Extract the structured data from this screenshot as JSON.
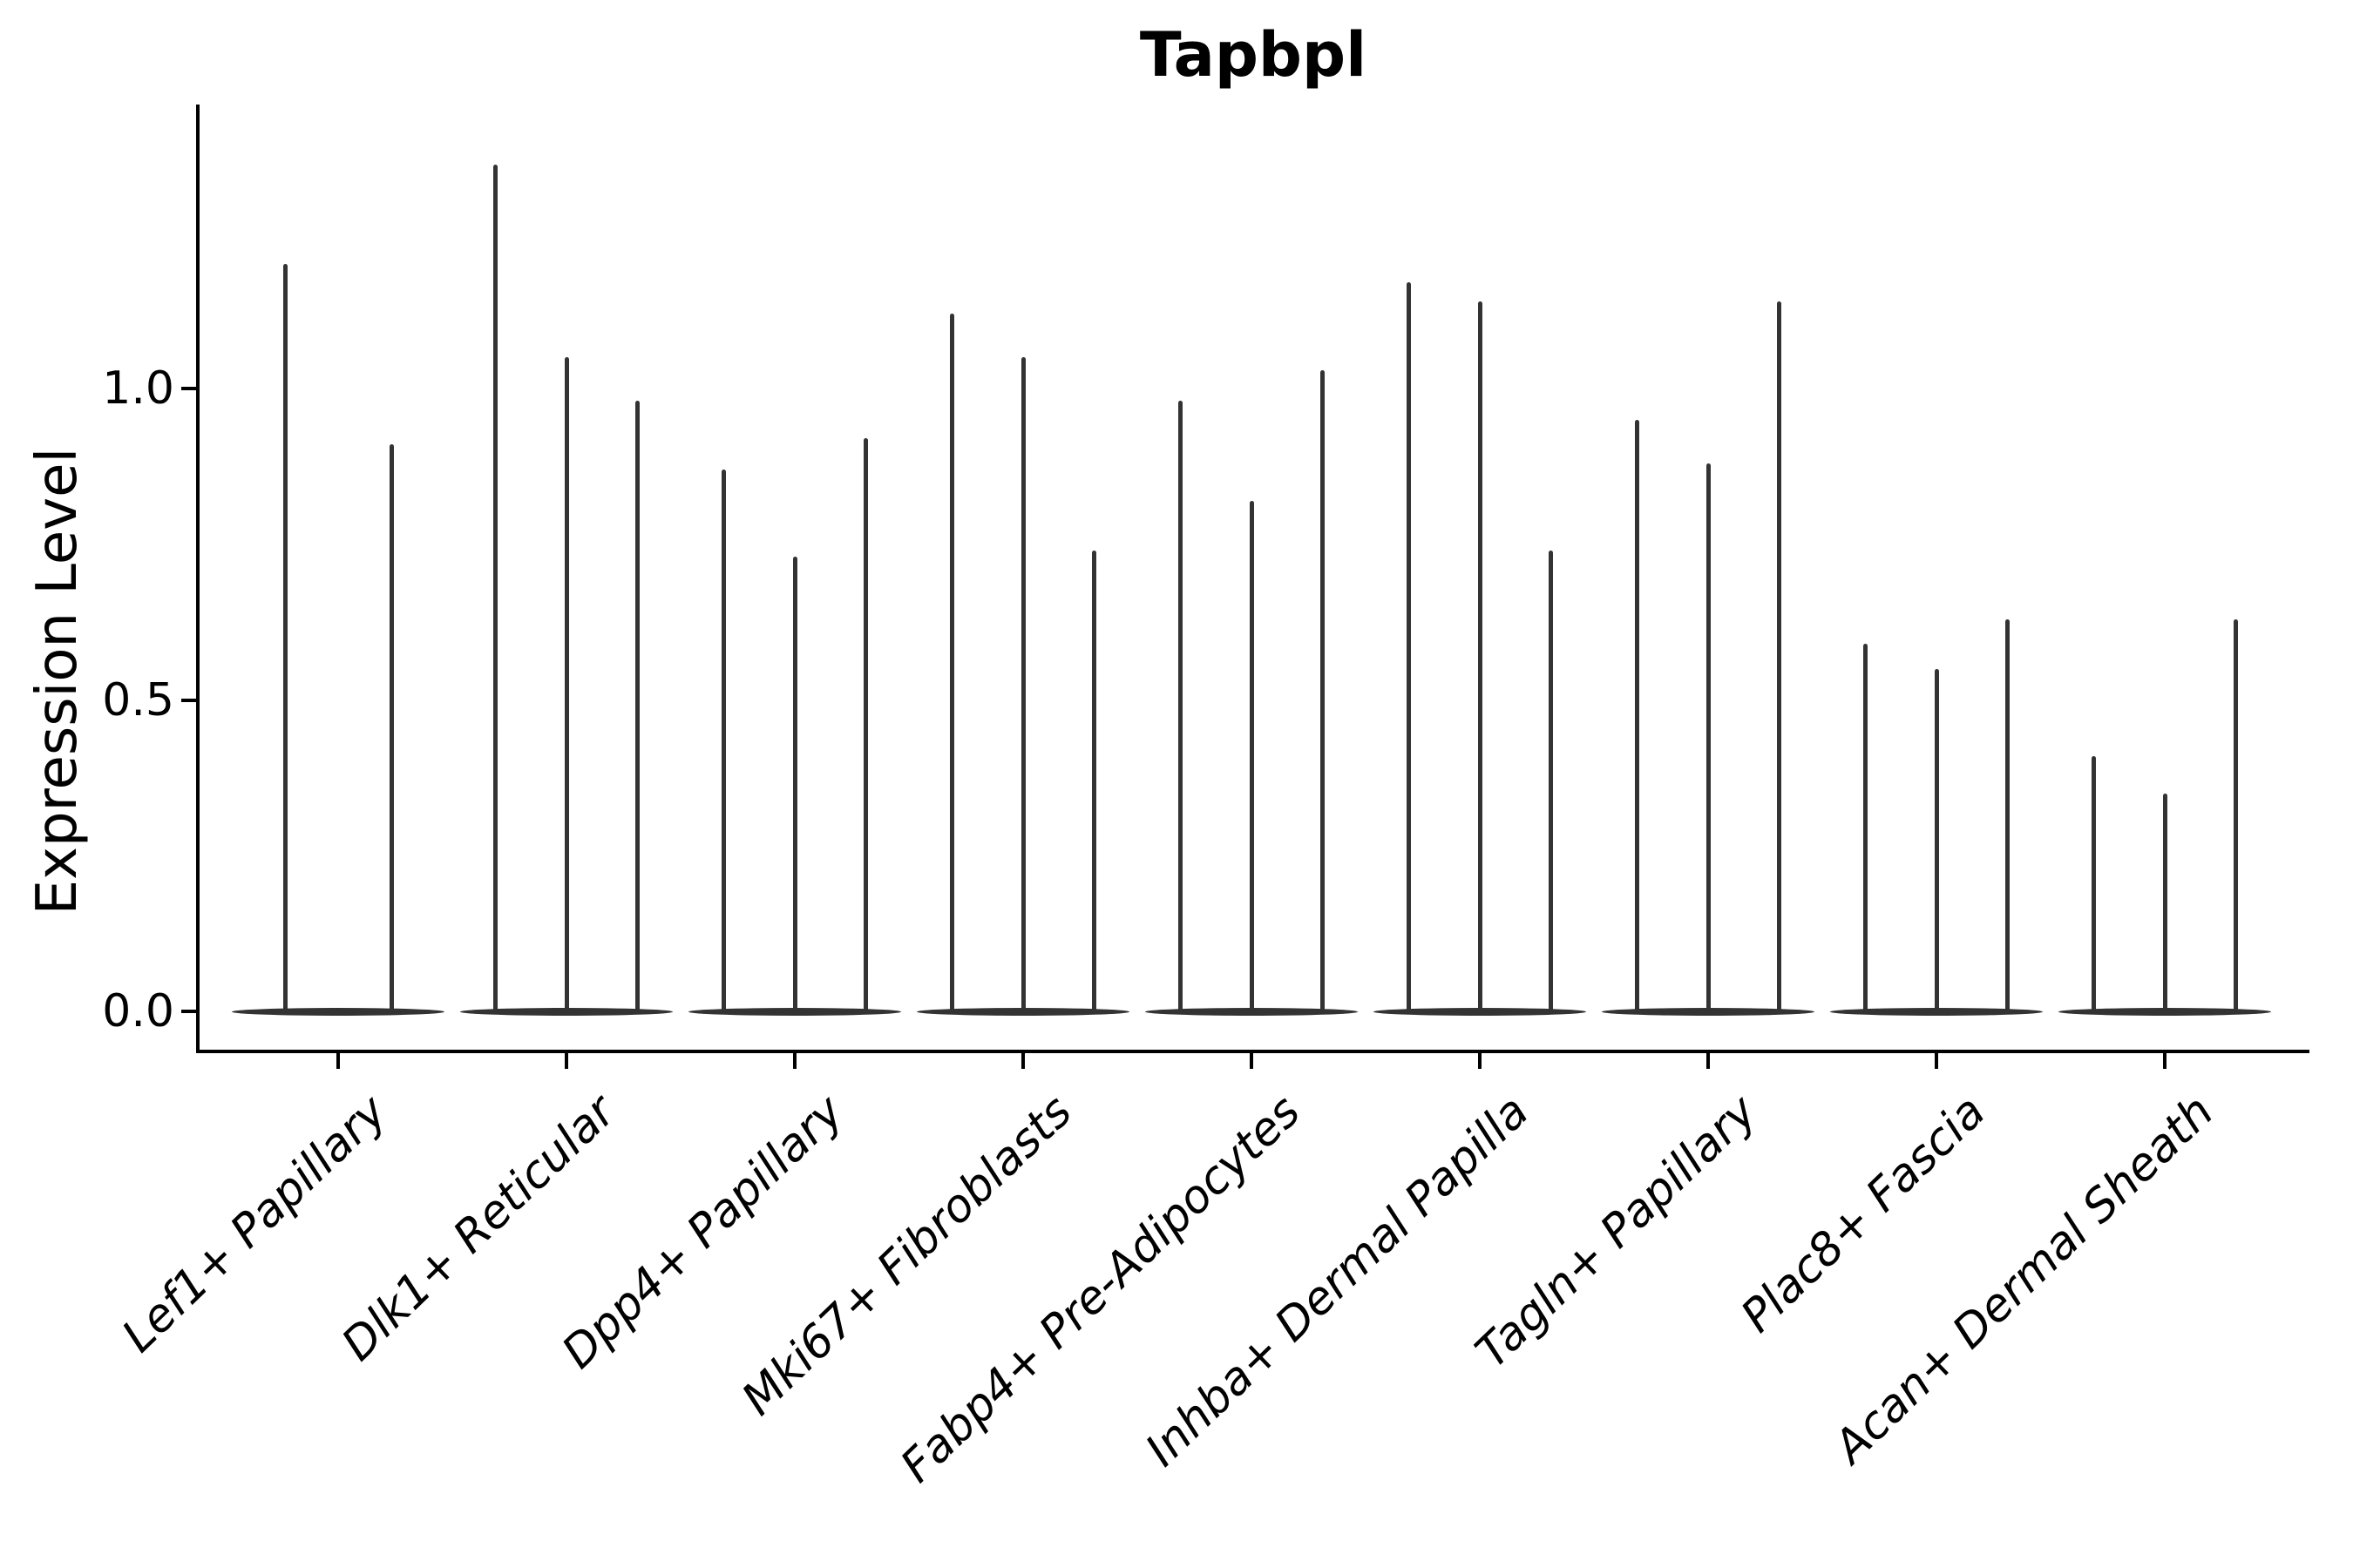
{
  "title": "Tapbpl",
  "axes": {
    "ylabel": "Expression Level",
    "xlabel": ""
  },
  "style": {
    "violin_color": "#333333",
    "axis_color": "#000000",
    "background_color": "#ffffff"
  },
  "chart_data": {
    "type": "violin",
    "title": "Tapbpl",
    "ylabel": "Expression Level",
    "xlabel": "",
    "grid": false,
    "legend": false,
    "ylim": [
      -0.064,
      1.456
    ],
    "yticks": [
      {
        "label": "0.0",
        "value": 0.0
      },
      {
        "label": "0.5",
        "value": 0.5
      },
      {
        "label": "1.0",
        "value": 1.0
      }
    ],
    "categories": [
      "Lef1+ Papillary",
      "Dlk1+ Reticular",
      "Dpp4+ Papillary",
      "Mki67+ Fibroblasts",
      "Fabp4+ Pre-Adipocytes",
      "Inhba+ Dermal Papilla",
      "Tagln+ Papillary",
      "Plac8+ Fascia",
      "Acan+ Dermal Sheath"
    ],
    "series": [
      {
        "category": "Lef1+ Papillary",
        "spike_maxima": [
          1.2,
          0.91
        ]
      },
      {
        "category": "Dlk1+ Reticular",
        "spike_maxima": [
          1.36,
          1.05,
          0.98
        ]
      },
      {
        "category": "Dpp4+ Papillary",
        "spike_maxima": [
          0.87,
          0.73,
          0.92
        ]
      },
      {
        "category": "Mki67+ Fibroblasts",
        "spike_maxima": [
          1.12,
          1.05,
          0.74
        ]
      },
      {
        "category": "Fabp4+ Pre-Adipocytes",
        "spike_maxima": [
          0.98,
          0.82,
          1.03
        ]
      },
      {
        "category": "Inhba+ Dermal Papilla",
        "spike_maxima": [
          1.17,
          1.14,
          0.74
        ]
      },
      {
        "category": "Tagln+ Papillary",
        "spike_maxima": [
          0.95,
          0.88,
          1.14
        ]
      },
      {
        "category": "Plac8+ Fascia",
        "spike_maxima": [
          0.59,
          0.55,
          0.63
        ]
      },
      {
        "category": "Acan+ Dermal Sheath",
        "spike_maxima": [
          0.41,
          0.35,
          0.63
        ]
      }
    ]
  }
}
